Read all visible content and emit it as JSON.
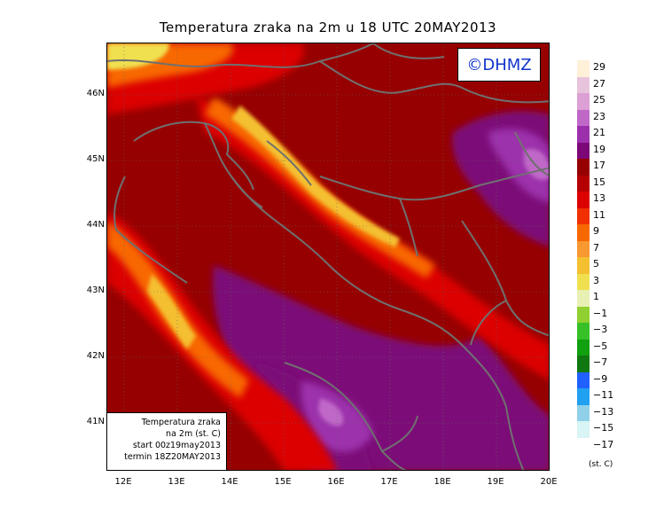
{
  "title": "Temperatura zraka na 2m u 18 UTC 20MAY2013",
  "logo": "©DHMZ",
  "info": {
    "line1": "Temperatura zraka",
    "line2": "na 2m (st. C)",
    "line3": "start 00z19may2013",
    "line4": "termin 18Z20MAY2013"
  },
  "axes": {
    "lat_labels": [
      "46N",
      "45N",
      "44N",
      "43N",
      "42N",
      "41N"
    ],
    "lat_values": [
      46,
      45,
      44,
      43,
      42,
      41
    ],
    "lon_labels": [
      "12E",
      "13E",
      "14E",
      "15E",
      "16E",
      "17E",
      "18E",
      "19E",
      "20E"
    ],
    "lon_values": [
      12,
      13,
      14,
      15,
      16,
      17,
      18,
      19,
      20
    ],
    "lon_range": [
      11.7,
      20
    ],
    "lat_range": [
      40.25,
      46.75
    ]
  },
  "legend": {
    "unit": "(st. C)",
    "labels": [
      "29",
      "27",
      "25",
      "23",
      "21",
      "19",
      "17",
      "15",
      "13",
      "11",
      "9",
      "7",
      "5",
      "3",
      "1",
      "−1",
      "−3",
      "−5",
      "−7",
      "−9",
      "−11",
      "−13",
      "−15",
      "−17"
    ],
    "colors": [
      "#fff0d8",
      "#e8c4dc",
      "#dca0d4",
      "#c068c8",
      "#9c30ac",
      "#7c0878",
      "#960000",
      "#b40000",
      "#dc0000",
      "#f03000",
      "#f86800",
      "#f89830",
      "#f4c030",
      "#f0e050",
      "#e8f0b4",
      "#90d030",
      "#38c028",
      "#10a010",
      "#107810",
      "#2060ff",
      "#20a0f0",
      "#90d0e8",
      "#d8f4f4"
    ]
  }
}
